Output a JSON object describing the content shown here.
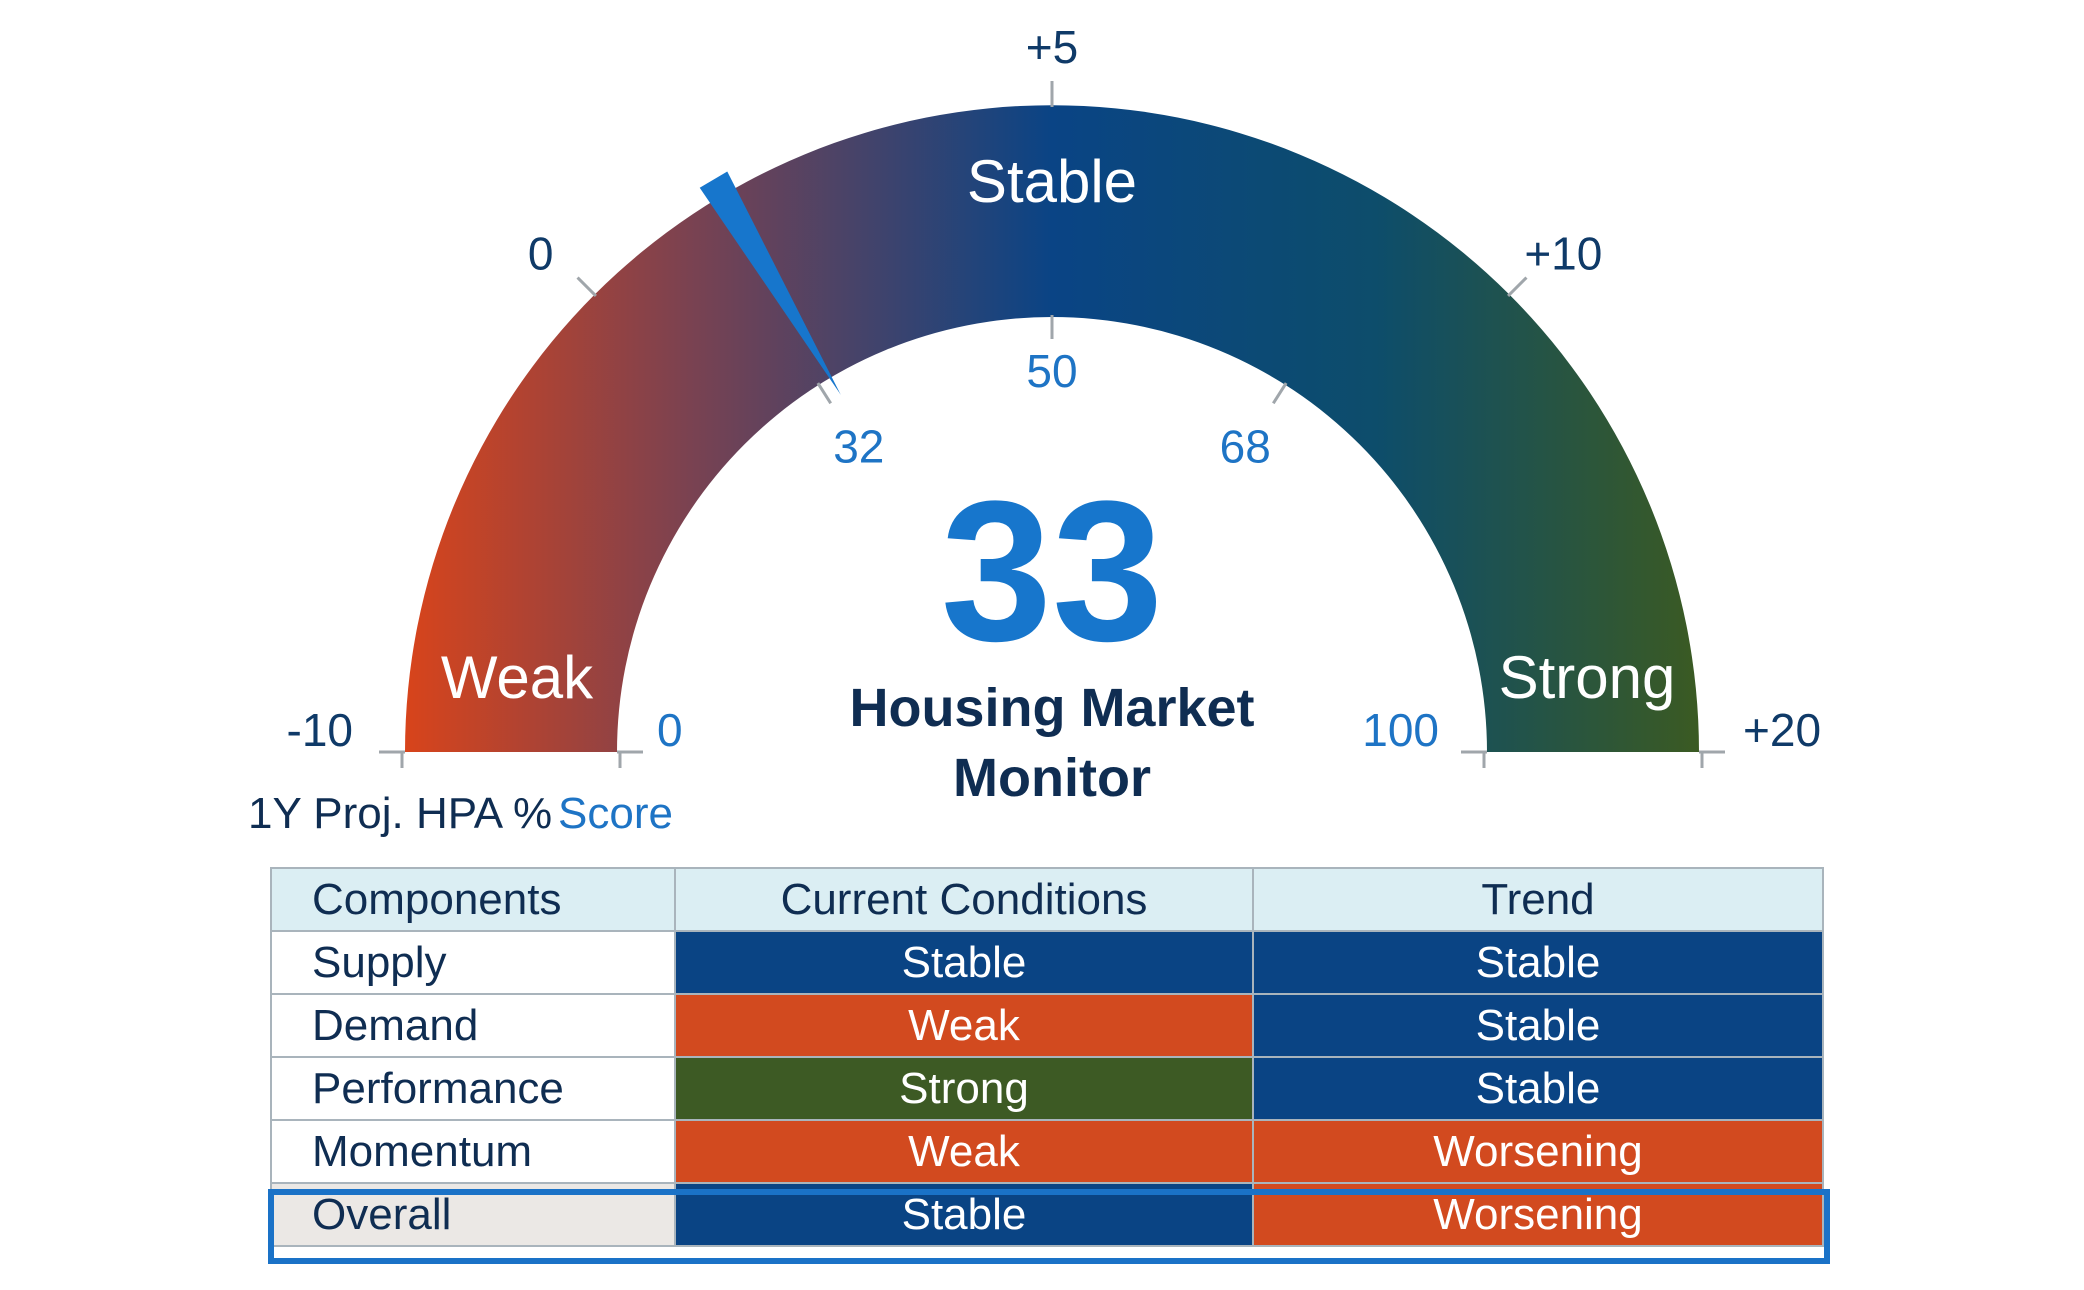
{
  "chart_data": {
    "type": "gauge",
    "title": "Housing Market Monitor",
    "score": 33,
    "score_range": [
      0,
      100
    ],
    "zones": [
      {
        "label": "Weak",
        "from": 0,
        "to": 32
      },
      {
        "label": "Stable",
        "from": 32,
        "to": 68
      },
      {
        "label": "Strong",
        "from": 68,
        "to": 100
      }
    ],
    "score_ticks": [
      {
        "value": 0,
        "label": "0"
      },
      {
        "value": 32,
        "label": "32"
      },
      {
        "value": 50,
        "label": "50"
      },
      {
        "value": 68,
        "label": "68"
      },
      {
        "value": 100,
        "label": "100"
      }
    ],
    "hpa_ticks": [
      {
        "value": 0,
        "label": "-10"
      },
      {
        "value": 25,
        "label": "0"
      },
      {
        "value": 50,
        "label": "+5"
      },
      {
        "value": 75,
        "label": "+10"
      },
      {
        "value": 100,
        "label": "+20"
      }
    ],
    "hpa_axis_label": "1Y Proj. HPA %",
    "score_axis_label": "Score",
    "colors": {
      "weak": "#d24a1f",
      "stable": "#0a4484",
      "strong": "#3d5a24",
      "needle": "#1776cc"
    }
  },
  "table": {
    "headers": [
      "Components",
      "Current Conditions",
      "Trend"
    ],
    "rows": [
      {
        "component": "Supply",
        "current": "Stable",
        "trend": "Stable"
      },
      {
        "component": "Demand",
        "current": "Weak",
        "trend": "Stable"
      },
      {
        "component": "Performance",
        "current": "Strong",
        "trend": "Stable"
      },
      {
        "component": "Momentum",
        "current": "Weak",
        "trend": "Worsening"
      },
      {
        "component": "Overall",
        "current": "Stable",
        "trend": "Worsening"
      }
    ],
    "status_colors": {
      "Stable": "#0a4484",
      "Weak": "#d24a1f",
      "Strong": "#3d5a24",
      "Worsening": "#d24a1f"
    }
  }
}
